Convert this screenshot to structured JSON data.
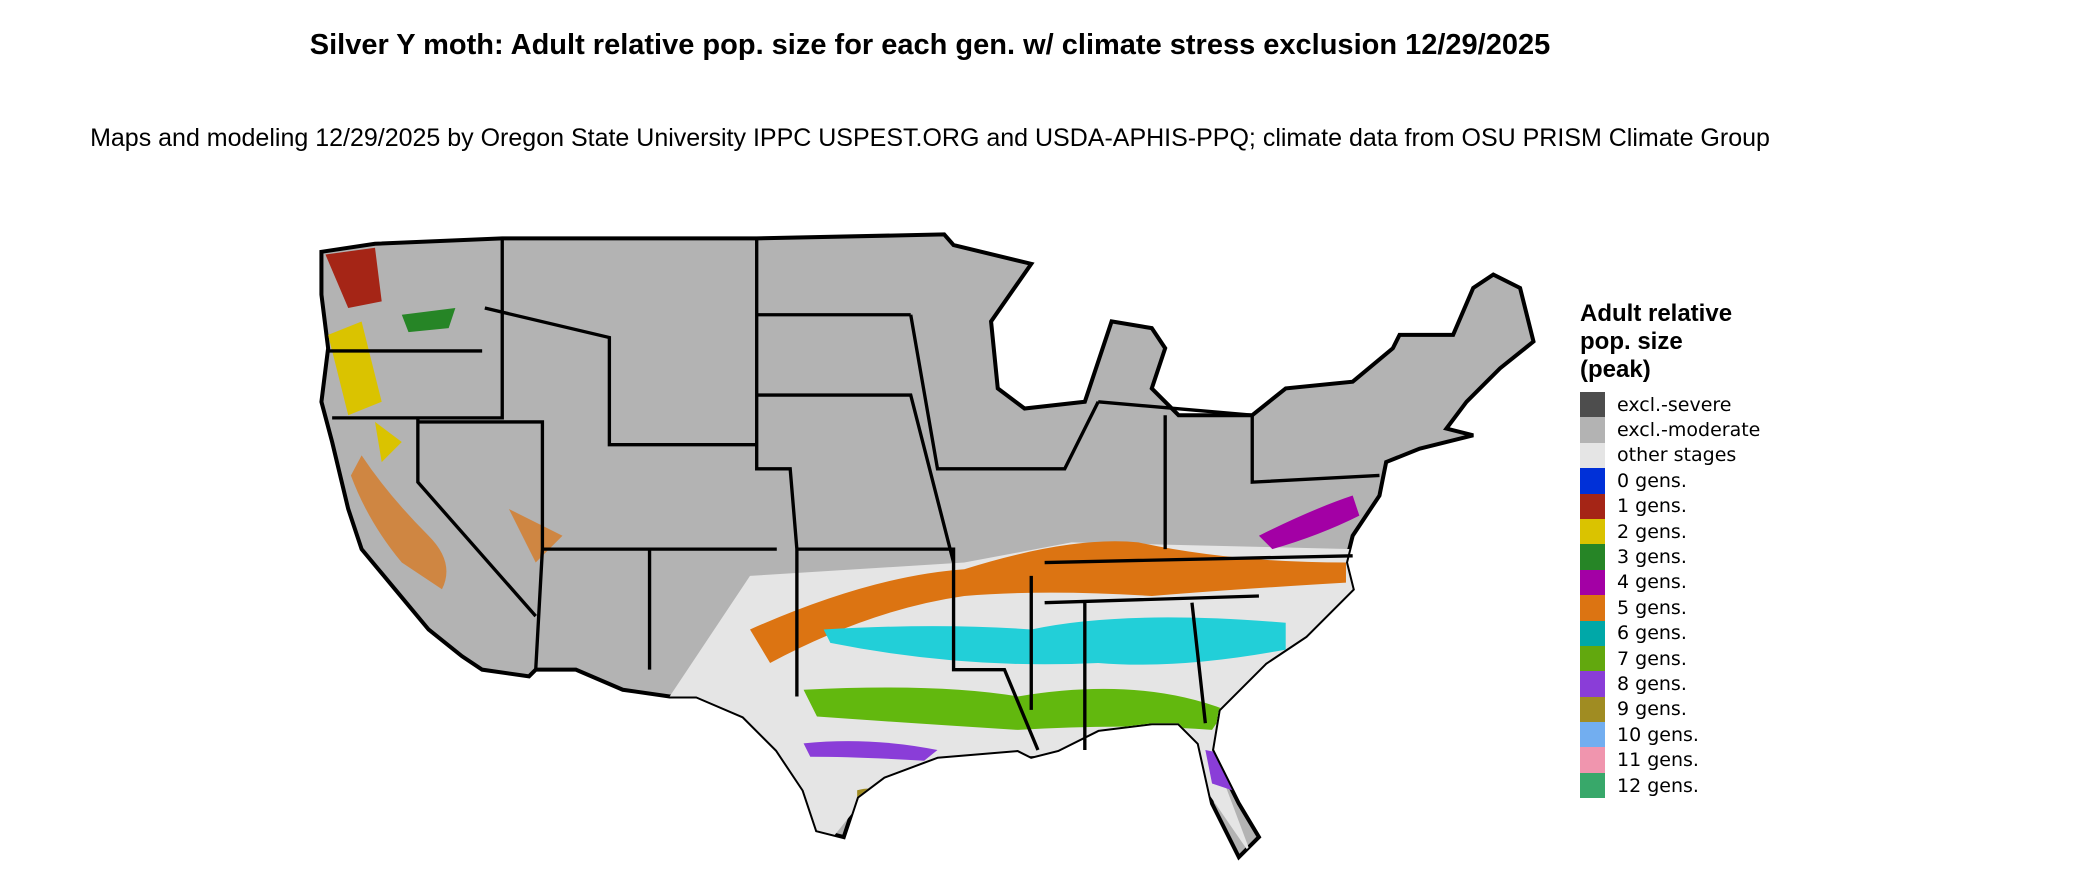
{
  "title": "Silver Y moth: Adult relative pop. size for each gen. w/ climate stress exclusion 12/29/2025",
  "subtitle": "Maps and modeling 12/29/2025 by Oregon State University IPPC USPEST.ORG and USDA-APHIS-PPQ; climate data from OSU PRISM Climate Group",
  "legend": {
    "title": "Adult relative pop. size (peak)",
    "items": [
      {
        "label": "excl.-severe",
        "color": "#4d4d4d"
      },
      {
        "label": "excl.-moderate",
        "color": "#b3b3b3"
      },
      {
        "label": "other stages",
        "color": "#e5e5e5"
      },
      {
        "label": "0 gens.",
        "color": "#0030d8"
      },
      {
        "label": "1 gens.",
        "color": "#a52516"
      },
      {
        "label": "2 gens.",
        "color": "#dac300"
      },
      {
        "label": "3 gens.",
        "color": "#268526"
      },
      {
        "label": "4 gens.",
        "color": "#a300a5"
      },
      {
        "label": "5 gens.",
        "color": "#dc7412"
      },
      {
        "label": "6 gens.",
        "color": "#00a8a8"
      },
      {
        "label": "7 gens.",
        "color": "#62a80e"
      },
      {
        "label": "8 gens.",
        "color": "#8a3dd8"
      },
      {
        "label": "9 gens.",
        "color": "#a08c22"
      },
      {
        "label": "10 gens.",
        "color": "#72aef0"
      },
      {
        "label": "11 gens.",
        "color": "#f095ae"
      },
      {
        "label": "12 gens.",
        "color": "#38a86a"
      }
    ]
  }
}
